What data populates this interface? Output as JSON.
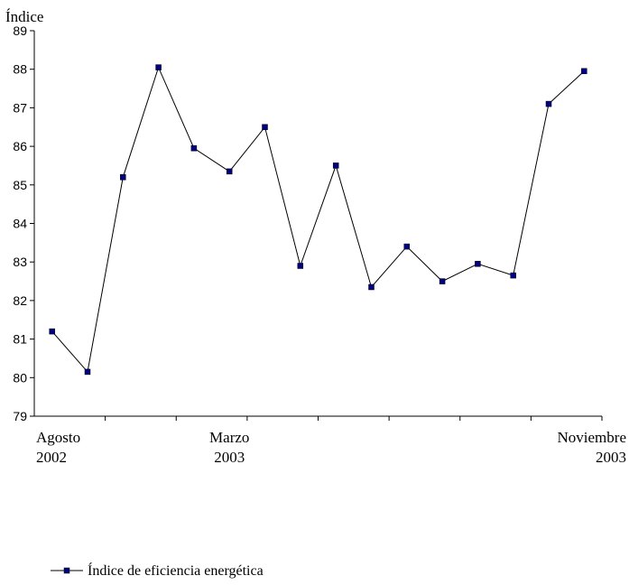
{
  "chart_data": {
    "type": "line",
    "title": "",
    "ylabel": "Índice",
    "xlabel": "",
    "ylim": [
      79,
      89
    ],
    "yticks": [
      79,
      80,
      81,
      82,
      83,
      84,
      85,
      86,
      87,
      88,
      89
    ],
    "x_labels": [
      {
        "line1": "Agosto",
        "line2": "2002",
        "index": 0
      },
      {
        "line1": "Marzo",
        "line2": "2003",
        "index": 5
      },
      {
        "line1": "Noviembre",
        "line2": "2003",
        "index": 15
      }
    ],
    "series": [
      {
        "name": "Índice de eficiencia energética",
        "color": "#000080",
        "line_color": "#000000",
        "values": [
          81.2,
          80.15,
          85.2,
          88.05,
          85.95,
          85.35,
          86.5,
          82.9,
          85.5,
          82.35,
          83.4,
          82.5,
          82.95,
          82.65,
          87.1,
          87.95
        ]
      }
    ],
    "grid": false,
    "legend_position": "bottom-left"
  }
}
